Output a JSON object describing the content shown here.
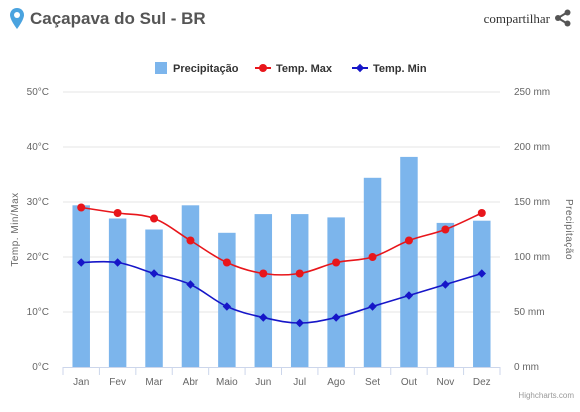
{
  "header": {
    "title": "Caçapava do Sul - BR",
    "share_label": "compartilhar",
    "pin_icon": "location-pin-icon",
    "share_icon": "share-icon",
    "pin_color": "#4aa3df"
  },
  "credits": "Highcharts.com",
  "chart_data": {
    "type": "bar+line",
    "categories": [
      "Jan",
      "Fev",
      "Mar",
      "Abr",
      "Maio",
      "Jun",
      "Jul",
      "Ago",
      "Set",
      "Out",
      "Nov",
      "Dez"
    ],
    "left_axis": {
      "title": "Temp. Min/Max",
      "range": [
        0,
        50
      ],
      "ticks": [
        0,
        10,
        20,
        30,
        40,
        50
      ],
      "tick_labels": [
        "0°C",
        "10°C",
        "20°C",
        "30°C",
        "40°C",
        "50°C"
      ]
    },
    "right_axis": {
      "title": "Precipitação",
      "range": [
        0,
        250
      ],
      "ticks": [
        0,
        50,
        100,
        150,
        200,
        250
      ],
      "tick_labels": [
        "0 mm",
        "50 mm",
        "100 mm",
        "150 mm",
        "200 mm",
        "250 mm"
      ]
    },
    "series": [
      {
        "name": "Precipitação",
        "type": "column",
        "axis": "right",
        "color": "#7cb5ec",
        "values": [
          147,
          135,
          125,
          147,
          122,
          139,
          139,
          136,
          172,
          191,
          131,
          133
        ]
      },
      {
        "name": "Temp. Max",
        "type": "line",
        "axis": "left",
        "color": "#e8161b",
        "values": [
          29,
          28,
          27,
          23,
          19,
          17,
          17,
          19,
          20,
          23,
          25,
          28
        ]
      },
      {
        "name": "Temp. Min",
        "type": "line",
        "axis": "left",
        "color": "#1616c8",
        "values": [
          19,
          19,
          17,
          15,
          11,
          9,
          8,
          9,
          11,
          13,
          15,
          17
        ]
      }
    ],
    "legend_position": "top-center",
    "grid": true
  }
}
